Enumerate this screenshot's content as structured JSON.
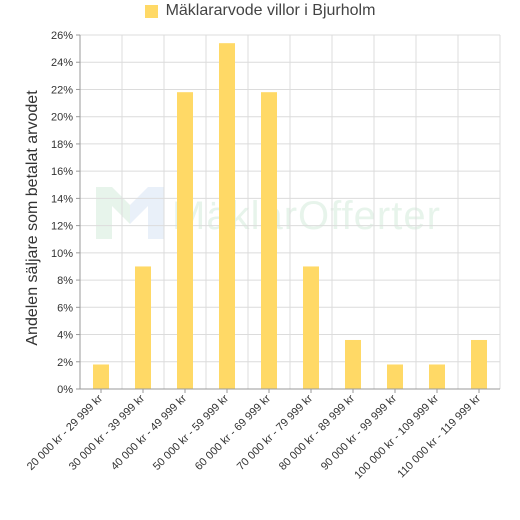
{
  "legend": {
    "label": "Mäklararvode villor i Bjurholm"
  },
  "watermark": {
    "text": "MäklarOfferter"
  },
  "colors": {
    "bar": "#ffd966",
    "grid": "#dcdcdc",
    "axis": "#999999",
    "wm_green": "#4fae6e",
    "wm_blue": "#5b8fd6"
  },
  "chart_data": {
    "type": "bar",
    "title": "",
    "xlabel": "",
    "ylabel": "Andelen säljare som betalat arvodet",
    "ylim": [
      0,
      26
    ],
    "ytick_step": 2,
    "yticks": [
      "0%",
      "2%",
      "4%",
      "6%",
      "8%",
      "10%",
      "12%",
      "14%",
      "16%",
      "18%",
      "20%",
      "22%",
      "24%",
      "26%"
    ],
    "grid": true,
    "legend_position": "top",
    "categories": [
      "20 000 kr - 29 999 kr",
      "30 000 kr - 39 999 kr",
      "40 000 kr - 49 999 kr",
      "50 000 kr - 59 999 kr",
      "60 000 kr - 69 999 kr",
      "70 000 kr - 79 999 kr",
      "80 000 kr - 89 999 kr",
      "90 000 kr - 99 999 kr",
      "100 000 kr - 109 999 kr",
      "110 000 kr - 119 999 kr"
    ],
    "series": [
      {
        "name": "Mäklararvode villor i Bjurholm",
        "values": [
          1.8,
          9.0,
          21.8,
          25.4,
          21.8,
          9.0,
          3.6,
          1.8,
          1.8,
          3.6
        ]
      }
    ]
  }
}
